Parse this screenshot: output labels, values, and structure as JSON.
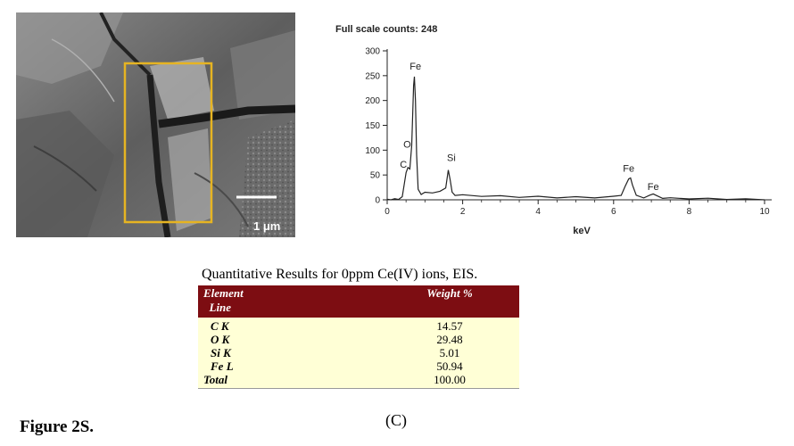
{
  "sem_image": {
    "scale_bar_label": "1 μm",
    "roi_box_color": "#e6b422"
  },
  "chart_data": {
    "type": "line",
    "title": "Full scale counts: 248",
    "xlabel": "keV",
    "ylabel": "",
    "xlim": [
      0,
      10
    ],
    "ylim": [
      0,
      300
    ],
    "xticks": [
      0,
      2,
      4,
      6,
      8,
      10
    ],
    "yticks": [
      0,
      50,
      100,
      150,
      200,
      250,
      300
    ],
    "grid": false,
    "series": [
      {
        "x": [
          0.0,
          0.1,
          0.2,
          0.3,
          0.4,
          0.45,
          0.5,
          0.55,
          0.6,
          0.65,
          0.7,
          0.72,
          0.75,
          0.78,
          0.82,
          0.9,
          1.0,
          1.2,
          1.4,
          1.55,
          1.62,
          1.67,
          1.72,
          1.8,
          2.0,
          2.5,
          3.0,
          3.5,
          4.0,
          4.5,
          5.0,
          5.5,
          6.0,
          6.2,
          6.3,
          6.4,
          6.45,
          6.5,
          6.6,
          6.8,
          6.95,
          7.05,
          7.15,
          7.3,
          7.5,
          8.0,
          8.5,
          9.0,
          9.5,
          10.0
        ],
        "y": [
          0,
          0,
          1,
          2,
          5,
          30,
          55,
          65,
          62,
          110,
          230,
          248,
          200,
          90,
          20,
          12,
          14,
          15,
          16,
          25,
          60,
          40,
          14,
          10,
          9,
          8,
          7,
          6,
          6,
          5,
          5,
          5,
          6,
          10,
          25,
          42,
          44,
          30,
          8,
          5,
          8,
          13,
          7,
          4,
          3,
          3,
          2,
          2,
          1,
          1
        ]
      }
    ],
    "annotations": [
      {
        "text": "Fe",
        "x": 0.75,
        "y": 262
      },
      {
        "text": "O",
        "x": 0.53,
        "y": 105
      },
      {
        "text": "C",
        "x": 0.43,
        "y": 65
      },
      {
        "text": "Si",
        "x": 1.7,
        "y": 78
      },
      {
        "text": "Fe",
        "x": 6.4,
        "y": 57
      },
      {
        "text": "Fe",
        "x": 7.05,
        "y": 20
      }
    ]
  },
  "table": {
    "title": "Quantitative Results for 0ppm Ce(IV) ions, EIS.",
    "header": {
      "element": "Element",
      "line": "Line",
      "weight": "Weight %"
    },
    "rows": [
      {
        "element": "C K",
        "weight": "14.57"
      },
      {
        "element": "O K",
        "weight": "29.48"
      },
      {
        "element": "Si K",
        "weight": "5.01"
      },
      {
        "element": "Fe L",
        "weight": "50.94"
      }
    ],
    "total": {
      "element": "Total",
      "weight": "100.00"
    }
  },
  "figure_label": "Figure 2S.",
  "panel_label": "(C)"
}
